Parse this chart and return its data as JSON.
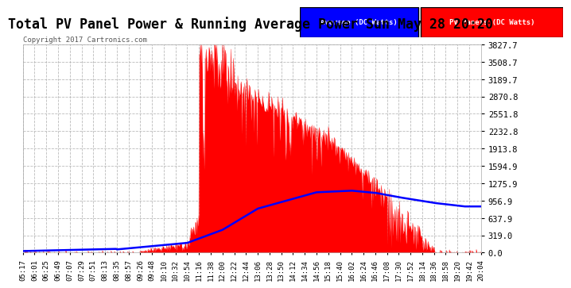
{
  "title": "Total PV Panel Power & Running Average Power Sun May 28 20:20",
  "copyright": "Copyright 2017 Cartronics.com",
  "legend_avg": "Average (DC Watts)",
  "legend_pv": "PV Panels (DC Watts)",
  "yticks": [
    0.0,
    319.0,
    637.9,
    956.9,
    1275.9,
    1594.9,
    1913.8,
    2232.8,
    2551.8,
    2870.8,
    3189.7,
    3508.7,
    3827.7
  ],
  "ymax": 3827.7,
  "ymin": 0.0,
  "bg_color": "#ffffff",
  "plot_bg_color": "#ffffff",
  "grid_color": "#bbbbbb",
  "pv_color": "#ff0000",
  "avg_color": "#0000ff",
  "title_fontsize": 12,
  "x_label_fontsize": 6.5,
  "y_label_fontsize": 7.5,
  "xtick_labels": [
    "05:17",
    "06:01",
    "06:25",
    "06:49",
    "07:07",
    "07:29",
    "07:51",
    "08:13",
    "08:35",
    "08:57",
    "09:26",
    "09:48",
    "10:10",
    "10:32",
    "10:54",
    "11:16",
    "11:38",
    "12:00",
    "12:22",
    "12:44",
    "13:06",
    "13:28",
    "13:50",
    "14:12",
    "14:34",
    "14:56",
    "15:18",
    "15:40",
    "16:02",
    "16:24",
    "16:46",
    "17:08",
    "17:30",
    "17:52",
    "18:14",
    "18:36",
    "18:58",
    "19:20",
    "19:42",
    "20:04"
  ]
}
